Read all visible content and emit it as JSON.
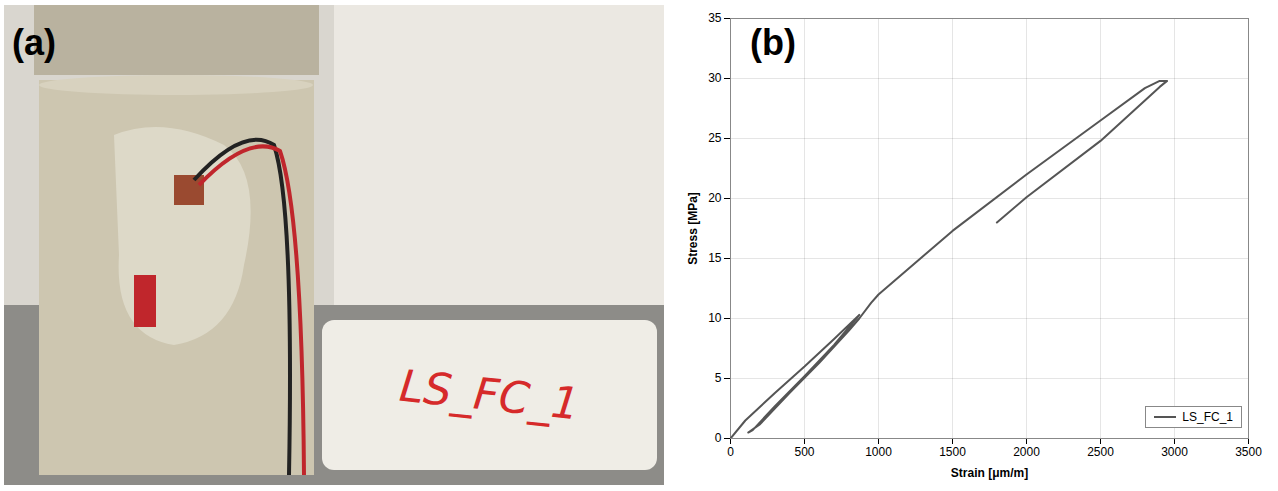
{
  "photo": {
    "label": "(a)",
    "specimen_label": "LS_FC_1"
  },
  "chart_data": {
    "type": "line",
    "title": "(b)",
    "x_label": "Strain [μm/m]",
    "y_label": "Stress [MPa]",
    "x": [
      0,
      100,
      300,
      500,
      700,
      870,
      850,
      700,
      500,
      300,
      150,
      120,
      200,
      400,
      600,
      800,
      870,
      950,
      1000,
      1500,
      2000,
      2500,
      2800,
      2900,
      2950,
      2900,
      2500,
      2000,
      1800
    ],
    "series": [
      {
        "name": "LS_FC_1",
        "color": "#555555",
        "values": [
          0,
          1.5,
          3.8,
          6.0,
          8.3,
          10.3,
          10.0,
          7.8,
          5.2,
          2.7,
          0.7,
          0.5,
          1.2,
          3.8,
          6.3,
          9.0,
          10.0,
          11.3,
          12.0,
          17.3,
          22.0,
          26.5,
          29.2,
          29.8,
          29.8,
          29.3,
          24.8,
          20.1,
          18.0
        ]
      }
    ],
    "xlim": [
      0,
      3500
    ],
    "xticks": [
      0,
      500,
      1000,
      1500,
      2000,
      2500,
      3000,
      3500
    ],
    "ylim": [
      0,
      35
    ],
    "yticks": [
      0,
      5,
      10,
      15,
      20,
      25,
      30,
      35
    ],
    "grid": true,
    "legend": "bottom-right"
  }
}
